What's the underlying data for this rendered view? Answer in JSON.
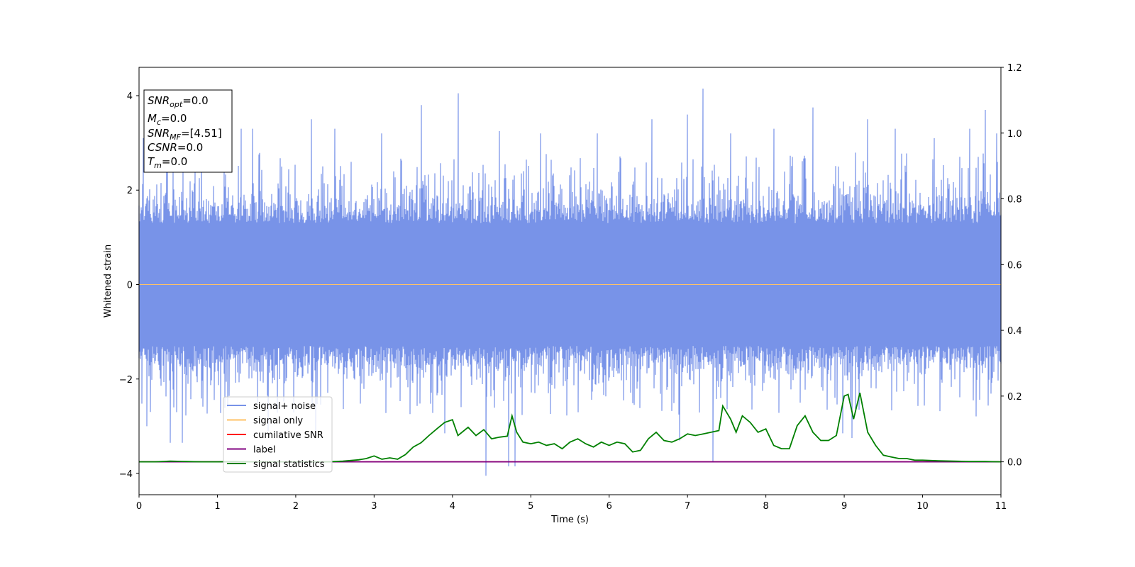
{
  "chart_data": {
    "type": "line",
    "xlabel": "Time (s)",
    "ylabel": "Whitened strain",
    "xlim": [
      0,
      11
    ],
    "ylim": [
      -4.45,
      4.6
    ],
    "y2lim": [
      -0.1,
      1.2
    ],
    "xticks": [
      "0",
      "1",
      "2",
      "3",
      "4",
      "5",
      "6",
      "7",
      "8",
      "9",
      "10",
      "11"
    ],
    "yticks": [
      "4",
      "2",
      "0",
      "−2",
      "−4"
    ],
    "y2ticks": [
      "1.2",
      "1.0",
      "0.8",
      "0.6",
      "0.4",
      "0.2",
      "0.0"
    ],
    "grid": false,
    "legend_position": "lower-left",
    "annotation": {
      "snr_opt": {
        "main": "SNR",
        "sub": "opt",
        "value": "=0.0"
      },
      "mc": {
        "main": "M",
        "sub": "c",
        "value": "=0.0"
      },
      "snr_mf": {
        "main": "SNR",
        "sub": "MF",
        "value": "=[4.51]"
      },
      "csnr": {
        "main": "CSNR",
        "value": "=0.0"
      },
      "tm": {
        "main": "T",
        "sub": "m",
        "value": "=0.0"
      }
    },
    "noise_envelope": {
      "comment_free": true,
      "spike_peaks_upper": [
        [
          0.05,
          3.1
        ],
        [
          0.35,
          3.2
        ],
        [
          0.8,
          3.2
        ],
        [
          1.3,
          3.3
        ],
        [
          1.45,
          3.3
        ],
        [
          2.2,
          3.5
        ],
        [
          2.5,
          3.3
        ],
        [
          3.1,
          3.2
        ],
        [
          3.6,
          3.8
        ],
        [
          4.07,
          4.05
        ],
        [
          4.6,
          3.25
        ],
        [
          5.12,
          3.2
        ],
        [
          5.85,
          3.2
        ],
        [
          6.55,
          3.5
        ],
        [
          7.0,
          3.6
        ],
        [
          7.2,
          4.15
        ],
        [
          7.55,
          3.2
        ],
        [
          8.1,
          3.3
        ],
        [
          8.6,
          3.75
        ],
        [
          9.3,
          3.5
        ],
        [
          9.65,
          3.3
        ],
        [
          10.15,
          3.1
        ],
        [
          10.6,
          3.3
        ],
        [
          10.8,
          3.7
        ],
        [
          10.95,
          3.2
        ]
      ],
      "spike_peaks_lower": [
        [
          0.1,
          -3.0
        ],
        [
          0.4,
          -3.35
        ],
        [
          0.55,
          -3.35
        ],
        [
          1.65,
          -3.1
        ],
        [
          2.25,
          -3.2
        ],
        [
          3.9,
          -3.15
        ],
        [
          4.43,
          -4.05
        ],
        [
          4.72,
          -3.85
        ],
        [
          4.8,
          -3.85
        ],
        [
          6.9,
          -3.3
        ],
        [
          7.32,
          -3.75
        ],
        [
          8.98,
          -3.15
        ],
        [
          9.1,
          -3.25
        ]
      ]
    },
    "series": [
      {
        "name": "signal+ noise",
        "color": "#7893e8",
        "axis": "left"
      },
      {
        "name": "signal only",
        "color": "#ffc266",
        "axis": "left",
        "x": [
          0,
          11
        ],
        "y": [
          0,
          0
        ]
      },
      {
        "name": "cumilative SNR",
        "color": "#ff0000",
        "axis": "right",
        "x": [
          0,
          11
        ],
        "y": [
          0,
          0
        ]
      },
      {
        "name": "label",
        "color": "#800080",
        "axis": "right",
        "x": [
          0,
          11
        ],
        "y": [
          0,
          0
        ]
      },
      {
        "name": "signal statistics",
        "color": "#008000",
        "axis": "right",
        "x": [
          0.0,
          0.2,
          0.4,
          0.6,
          0.8,
          1.0,
          1.2,
          1.4,
          1.6,
          1.8,
          2.0,
          2.2,
          2.4,
          2.6,
          2.8,
          2.9,
          3.0,
          3.1,
          3.2,
          3.3,
          3.4,
          3.5,
          3.6,
          3.7,
          3.8,
          3.9,
          4.0,
          4.07,
          4.2,
          4.3,
          4.4,
          4.5,
          4.6,
          4.7,
          4.76,
          4.82,
          4.9,
          5.0,
          5.1,
          5.2,
          5.3,
          5.4,
          5.5,
          5.6,
          5.7,
          5.8,
          5.9,
          6.0,
          6.1,
          6.2,
          6.3,
          6.4,
          6.5,
          6.6,
          6.7,
          6.8,
          6.9,
          7.0,
          7.1,
          7.2,
          7.3,
          7.4,
          7.45,
          7.55,
          7.62,
          7.7,
          7.8,
          7.9,
          8.0,
          8.1,
          8.2,
          8.3,
          8.4,
          8.5,
          8.6,
          8.7,
          8.8,
          8.9,
          9.0,
          9.05,
          9.12,
          9.2,
          9.3,
          9.4,
          9.5,
          9.6,
          9.7,
          9.8,
          9.9,
          10.0,
          10.2,
          10.4,
          10.6,
          10.8,
          11.0
        ],
        "y": [
          0.0,
          0.0,
          0.002,
          0.001,
          0.0,
          0.0,
          0.001,
          0.0,
          0.0,
          0.0,
          0.0,
          0.0,
          0.0,
          0.002,
          0.006,
          0.01,
          0.018,
          0.008,
          0.012,
          0.008,
          0.022,
          0.045,
          0.058,
          0.08,
          0.1,
          0.12,
          0.128,
          0.08,
          0.105,
          0.08,
          0.098,
          0.07,
          0.075,
          0.078,
          0.14,
          0.09,
          0.06,
          0.055,
          0.06,
          0.05,
          0.055,
          0.04,
          0.06,
          0.07,
          0.055,
          0.045,
          0.06,
          0.05,
          0.06,
          0.055,
          0.03,
          0.035,
          0.07,
          0.09,
          0.065,
          0.06,
          0.07,
          0.085,
          0.08,
          0.085,
          0.09,
          0.095,
          0.17,
          0.13,
          0.09,
          0.14,
          0.12,
          0.09,
          0.1,
          0.05,
          0.04,
          0.04,
          0.11,
          0.14,
          0.09,
          0.065,
          0.065,
          0.08,
          0.2,
          0.205,
          0.13,
          0.21,
          0.09,
          0.05,
          0.02,
          0.015,
          0.01,
          0.01,
          0.005,
          0.005,
          0.003,
          0.002,
          0.001,
          0.001,
          0.0
        ]
      }
    ]
  }
}
